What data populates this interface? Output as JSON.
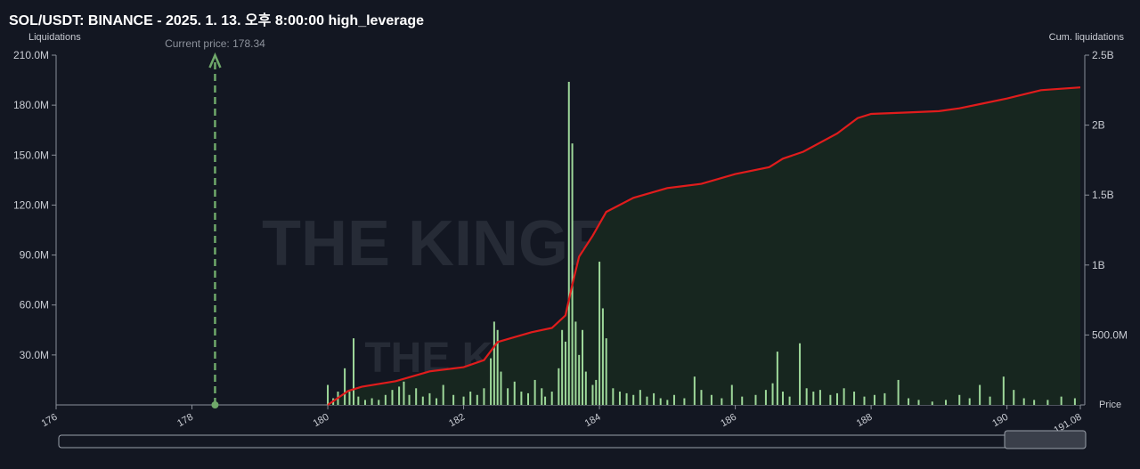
{
  "chart_data": {
    "type": "bar",
    "title": "SOL/USDT: BINANCE - 2025. 1. 13. 오후 8:00:00 high_leverage",
    "y_label": "Liquidations",
    "y2_label": "Cum. liquidations",
    "x_label": "Price",
    "watermark": "THE KINGFISHER.io",
    "current_price": 178.34,
    "current_price_label": "Current price: 178.34",
    "xlim": [
      176,
      191.08
    ],
    "xticks": [
      176,
      178,
      180,
      182,
      184,
      186,
      188,
      190,
      191.08
    ],
    "ylim": [
      0,
      210000000
    ],
    "yticks": [
      {
        "value": 30000000,
        "label": "30.0M"
      },
      {
        "value": 60000000,
        "label": "60.0M"
      },
      {
        "value": 90000000,
        "label": "90.0M"
      },
      {
        "value": 120000000,
        "label": "120.0M"
      },
      {
        "value": 150000000,
        "label": "150.0M"
      },
      {
        "value": 180000000,
        "label": "180.0M"
      },
      {
        "value": 210000000,
        "label": "210.0M"
      }
    ],
    "y2lim": [
      0,
      2500000000
    ],
    "y2ticks": [
      {
        "value": 500000000,
        "label": "500.0M"
      },
      {
        "value": 1000000000,
        "label": "1B"
      },
      {
        "value": 1500000000,
        "label": "1.5B"
      },
      {
        "value": 2000000000,
        "label": "2B"
      },
      {
        "value": 2500000000,
        "label": "2.5B"
      }
    ],
    "series": [
      {
        "type": "bar",
        "color": "#9ed89a",
        "x": [
          180.0,
          180.08,
          180.15,
          180.25,
          180.32,
          180.38,
          180.45,
          180.55,
          180.65,
          180.75,
          180.85,
          180.95,
          181.05,
          181.12,
          181.2,
          181.3,
          181.4,
          181.5,
          181.6,
          181.7,
          181.85,
          182.0,
          182.1,
          182.2,
          182.3,
          182.4,
          182.45,
          182.5,
          182.55,
          182.65,
          182.75,
          182.85,
          182.95,
          183.05,
          183.15,
          183.2,
          183.3,
          183.4,
          183.45,
          183.5,
          183.55,
          183.6,
          183.65,
          183.7,
          183.75,
          183.8,
          183.9,
          183.95,
          184.0,
          184.05,
          184.1,
          184.2,
          184.3,
          184.4,
          184.5,
          184.6,
          184.7,
          184.8,
          184.9,
          185.0,
          185.1,
          185.25,
          185.4,
          185.5,
          185.65,
          185.8,
          185.95,
          186.1,
          186.3,
          186.45,
          186.55,
          186.62,
          186.7,
          186.8,
          186.95,
          187.05,
          187.15,
          187.25,
          187.4,
          187.5,
          187.6,
          187.75,
          187.9,
          188.05,
          188.2,
          188.4,
          188.55,
          188.7,
          188.9,
          189.1,
          189.3,
          189.45,
          189.6,
          189.75,
          189.95,
          190.1,
          190.25,
          190.4,
          190.6,
          190.8,
          191.0
        ],
        "values": [
          12000000,
          4000000,
          8000000,
          22000000,
          8000000,
          40000000,
          5000000,
          3000000,
          4000000,
          3000000,
          6000000,
          9000000,
          11000000,
          14000000,
          6000000,
          10000000,
          5000000,
          7000000,
          4000000,
          12000000,
          6000000,
          5000000,
          8000000,
          6000000,
          10000000,
          28000000,
          50000000,
          45000000,
          20000000,
          10000000,
          14000000,
          8000000,
          7000000,
          15000000,
          10000000,
          5000000,
          8000000,
          22000000,
          45000000,
          38000000,
          194000000,
          157000000,
          50000000,
          30000000,
          45000000,
          20000000,
          12000000,
          15000000,
          86000000,
          58000000,
          40000000,
          10000000,
          8000000,
          7000000,
          6000000,
          9000000,
          5000000,
          7000000,
          4000000,
          3000000,
          6000000,
          4000000,
          17000000,
          9000000,
          6000000,
          4000000,
          12000000,
          5000000,
          6000000,
          9000000,
          13000000,
          32000000,
          8000000,
          5000000,
          37000000,
          10000000,
          8000000,
          9000000,
          6000000,
          7000000,
          10000000,
          8000000,
          5000000,
          6000000,
          7000000,
          15000000,
          4000000,
          3000000,
          2000000,
          3000000,
          6000000,
          4000000,
          12000000,
          5000000,
          17000000,
          9000000,
          4000000,
          3000000,
          3000000,
          5000000,
          4000000
        ]
      },
      {
        "type": "line",
        "axis": "y2",
        "color": "#e01c1c",
        "fill": "#17261f",
        "x": [
          180.0,
          180.3,
          180.5,
          181.0,
          181.5,
          182.0,
          182.3,
          182.5,
          183.0,
          183.3,
          183.5,
          183.6,
          183.7,
          183.9,
          184.1,
          184.5,
          185.0,
          185.5,
          186.0,
          186.5,
          186.7,
          187.0,
          187.5,
          187.8,
          188.0,
          188.5,
          189.0,
          189.3,
          189.6,
          190.0,
          190.5,
          191.08
        ],
        "values": [
          0,
          100000000,
          130000000,
          170000000,
          240000000,
          270000000,
          320000000,
          450000000,
          520000000,
          550000000,
          640000000,
          860000000,
          1060000000,
          1210000000,
          1380000000,
          1480000000,
          1550000000,
          1580000000,
          1650000000,
          1700000000,
          1760000000,
          1810000000,
          1940000000,
          2050000000,
          2080000000,
          2090000000,
          2100000000,
          2120000000,
          2150000000,
          2190000000,
          2250000000,
          2270000000
        ]
      }
    ]
  }
}
